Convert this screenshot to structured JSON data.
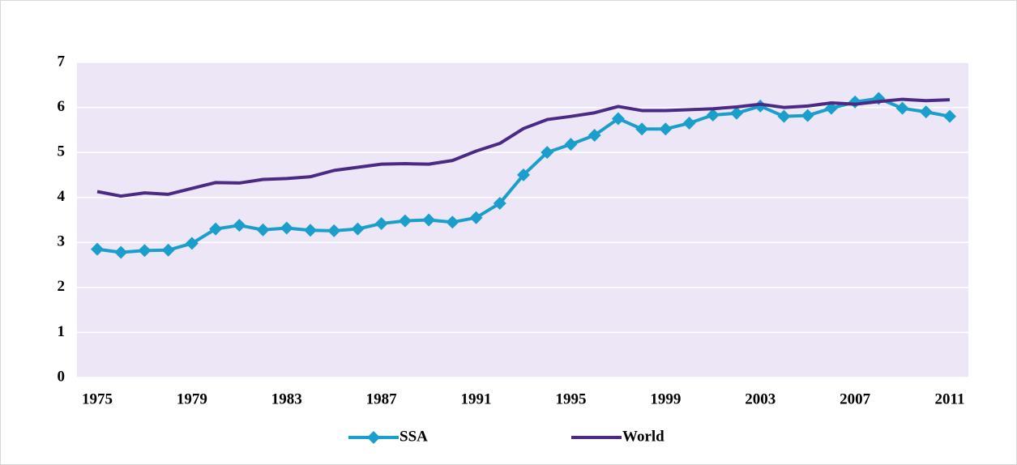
{
  "chart_data": {
    "type": "line",
    "x": [
      1975,
      1976,
      1977,
      1978,
      1979,
      1980,
      1981,
      1982,
      1983,
      1984,
      1985,
      1986,
      1987,
      1988,
      1989,
      1990,
      1991,
      1992,
      1993,
      1994,
      1995,
      1996,
      1997,
      1998,
      1999,
      2000,
      2001,
      2002,
      2003,
      2004,
      2005,
      2006,
      2007,
      2008,
      2009,
      2010,
      2011
    ],
    "series": [
      {
        "name": "SSA",
        "color": "#1a9fcc",
        "marker": "diamond",
        "values": [
          2.85,
          2.78,
          2.82,
          2.83,
          2.98,
          3.3,
          3.38,
          3.28,
          3.32,
          3.27,
          3.26,
          3.3,
          3.42,
          3.48,
          3.5,
          3.45,
          3.55,
          3.87,
          4.5,
          5.0,
          5.18,
          5.38,
          5.75,
          5.52,
          5.52,
          5.65,
          5.83,
          5.87,
          6.03,
          5.8,
          5.82,
          5.98,
          6.12,
          6.2,
          5.98,
          5.9,
          5.8
        ]
      },
      {
        "name": "World",
        "color": "#4b2a85",
        "values": [
          4.13,
          4.03,
          4.1,
          4.07,
          4.2,
          4.33,
          4.32,
          4.4,
          4.42,
          4.46,
          4.6,
          4.67,
          4.74,
          4.75,
          4.74,
          4.82,
          5.03,
          5.2,
          5.53,
          5.73,
          5.8,
          5.88,
          6.02,
          5.93,
          5.93,
          5.95,
          5.97,
          6.01,
          6.07,
          6.0,
          6.03,
          6.1,
          6.07,
          6.13,
          6.18,
          6.15,
          6.17
        ]
      }
    ],
    "xlim": [
      1975,
      2011
    ],
    "xticks": [
      1975,
      1979,
      1983,
      1987,
      1991,
      1995,
      1999,
      2003,
      2007,
      2011
    ],
    "ylim": [
      0,
      7
    ],
    "yticks": [
      0,
      1,
      2,
      3,
      4,
      5,
      6,
      7
    ],
    "grid": true,
    "legend": "bottom"
  }
}
